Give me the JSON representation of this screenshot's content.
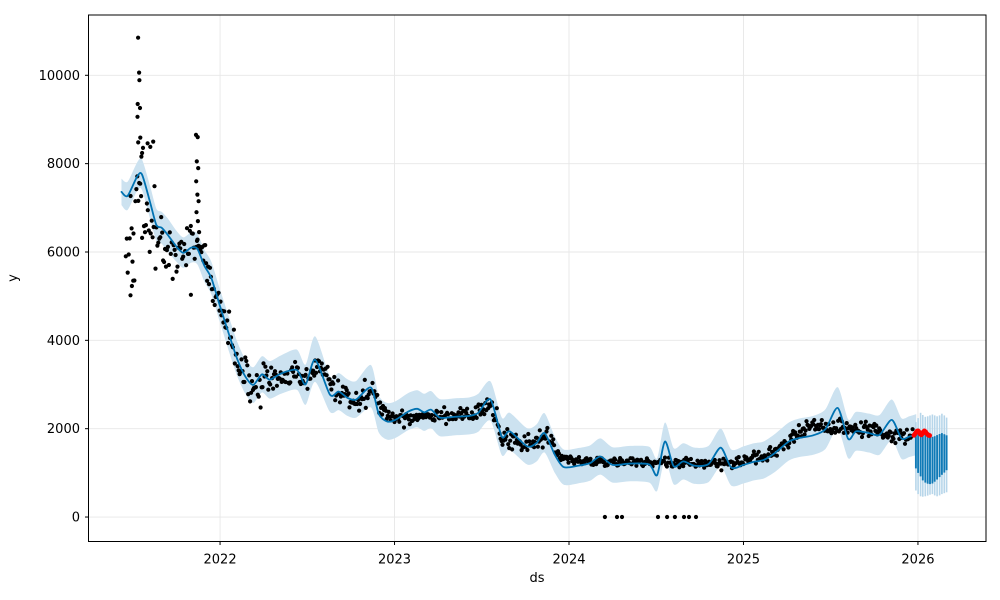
{
  "chart_data": {
    "type": "scatter",
    "subtype": "prophet-forecast",
    "title": "",
    "xlabel": "ds",
    "ylabel": "y",
    "grid": true,
    "legend": "none",
    "colors": {
      "forecast_line": "#0072B2",
      "uncertainty_band": "#cce2f0",
      "stripe_light": "#b7d6ea",
      "actual_points": "#000000",
      "highlight_points": "#ff0000",
      "gridline": "#e7e7e7",
      "spine": "#000000"
    },
    "x_axis": {
      "label": "ds",
      "min": 2021.246,
      "max": 2026.39,
      "ticks": [
        2022,
        2023,
        2024,
        2025,
        2026
      ]
    },
    "y_axis": {
      "label": "y",
      "min": -554,
      "max": 11365,
      "ticks": [
        0,
        2000,
        4000,
        6000,
        8000,
        10000
      ]
    },
    "forecast": {
      "comment": "columns: t(decimal year), yhat, yhat_lower, yhat_upper",
      "rows": [
        [
          2021.435,
          7360,
          7060,
          7660
        ],
        [
          2021.47,
          7270,
          6950,
          7590
        ],
        [
          2021.525,
          7710,
          7390,
          8030
        ],
        [
          2021.553,
          7750,
          7400,
          8090
        ],
        [
          2021.6,
          7110,
          6740,
          7480
        ],
        [
          2021.635,
          6610,
          6250,
          6980
        ],
        [
          2021.665,
          6550,
          6190,
          6910
        ],
        [
          2021.7,
          6390,
          6010,
          6760
        ],
        [
          2021.75,
          6120,
          5780,
          6480
        ],
        [
          2021.79,
          5980,
          5640,
          6330
        ],
        [
          2021.835,
          6100,
          5760,
          6450
        ],
        [
          2021.87,
          6070,
          5720,
          6420
        ],
        [
          2021.91,
          5690,
          5330,
          6050
        ],
        [
          2021.95,
          5410,
          5040,
          5780
        ],
        [
          2022.0,
          4770,
          4400,
          5150
        ],
        [
          2022.055,
          4090,
          3700,
          4480
        ],
        [
          2022.1,
          3560,
          3170,
          3950
        ],
        [
          2022.145,
          3180,
          2790,
          3570
        ],
        [
          2022.19,
          2990,
          2580,
          3390
        ],
        [
          2022.24,
          3230,
          2820,
          3640
        ],
        [
          2022.285,
          3110,
          2680,
          3530
        ],
        [
          2022.35,
          3250,
          2790,
          3660
        ],
        [
          2022.44,
          3330,
          2880,
          3790
        ],
        [
          2022.49,
          3000,
          2540,
          3450
        ],
        [
          2022.545,
          3560,
          3060,
          4090
        ],
        [
          2022.63,
          2770,
          2380,
          3190
        ],
        [
          2022.68,
          2840,
          2420,
          3260
        ],
        [
          2022.73,
          2700,
          2290,
          3120
        ],
        [
          2022.78,
          2660,
          2250,
          3080
        ],
        [
          2022.865,
          2930,
          2480,
          3440
        ],
        [
          2022.91,
          2330,
          1910,
          2750
        ],
        [
          2022.96,
          2160,
          1750,
          2580
        ],
        [
          2023.01,
          2210,
          1800,
          2630
        ],
        [
          2023.08,
          2390,
          1970,
          2810
        ],
        [
          2023.13,
          2450,
          2030,
          2870
        ],
        [
          2023.17,
          2370,
          1950,
          2790
        ],
        [
          2023.21,
          2430,
          2010,
          2850
        ],
        [
          2023.26,
          2250,
          1830,
          2670
        ],
        [
          2023.35,
          2270,
          1850,
          2690
        ],
        [
          2023.43,
          2290,
          1870,
          2710
        ],
        [
          2023.48,
          2360,
          1930,
          2790
        ],
        [
          2023.55,
          2660,
          2180,
          3070
        ],
        [
          2023.615,
          1820,
          1400,
          2250
        ],
        [
          2023.66,
          1940,
          1520,
          2360
        ],
        [
          2023.76,
          1600,
          1190,
          2010
        ],
        [
          2023.815,
          1680,
          1260,
          2100
        ],
        [
          2023.86,
          1900,
          1460,
          2350
        ],
        [
          2023.92,
          1400,
          990,
          1810
        ],
        [
          2023.97,
          1130,
          730,
          1530
        ],
        [
          2024.05,
          1160,
          760,
          1560
        ],
        [
          2024.12,
          1220,
          820,
          1620
        ],
        [
          2024.18,
          1370,
          960,
          1780
        ],
        [
          2024.25,
          1180,
          780,
          1580
        ],
        [
          2024.35,
          1210,
          810,
          1610
        ],
        [
          2024.46,
          1190,
          780,
          1590
        ],
        [
          2024.505,
          950,
          590,
          1330
        ],
        [
          2024.55,
          1710,
          1290,
          2140
        ],
        [
          2024.6,
          1150,
          740,
          1560
        ],
        [
          2024.655,
          1260,
          850,
          1670
        ],
        [
          2024.72,
          1160,
          750,
          1570
        ],
        [
          2024.8,
          1200,
          790,
          1610
        ],
        [
          2024.87,
          1570,
          1140,
          2000
        ],
        [
          2024.93,
          1120,
          710,
          1530
        ],
        [
          2025.0,
          1180,
          760,
          1600
        ],
        [
          2025.06,
          1250,
          830,
          1670
        ],
        [
          2025.115,
          1290,
          870,
          1710
        ],
        [
          2025.18,
          1450,
          1020,
          1880
        ],
        [
          2025.26,
          1710,
          1280,
          2140
        ],
        [
          2025.32,
          1790,
          1360,
          2230
        ],
        [
          2025.4,
          1850,
          1410,
          2290
        ],
        [
          2025.47,
          1990,
          1540,
          2440
        ],
        [
          2025.54,
          2470,
          1990,
          2940
        ],
        [
          2025.6,
          1770,
          1330,
          2210
        ],
        [
          2025.645,
          1940,
          1500,
          2380
        ],
        [
          2025.72,
          1900,
          1460,
          2340
        ],
        [
          2025.78,
          1860,
          1410,
          2310
        ],
        [
          2025.85,
          2200,
          1740,
          2660
        ],
        [
          2025.905,
          1780,
          1320,
          2240
        ],
        [
          2025.95,
          1820,
          1360,
          2280
        ],
        [
          2025.99,
          1870,
          1400,
          2330
        ]
      ]
    },
    "forecast_tail_daily_oscillation": {
      "comment": "dense daily forecast after history end; columns: t, band_top, dark_top, dark_bottom, band_bottom",
      "stripes": [
        [
          2025.988,
          2150,
          1880,
          1100,
          600
        ],
        [
          2026.001,
          2240,
          1900,
          1000,
          520
        ],
        [
          2026.015,
          2360,
          1905,
          920,
          470
        ],
        [
          2026.028,
          2310,
          1895,
          830,
          460
        ],
        [
          2026.042,
          2270,
          1880,
          780,
          470
        ],
        [
          2026.056,
          2280,
          1860,
          755,
          485
        ],
        [
          2026.069,
          2300,
          1835,
          745,
          505
        ],
        [
          2026.083,
          2320,
          1815,
          760,
          520
        ],
        [
          2026.096,
          2300,
          1830,
          800,
          490
        ],
        [
          2026.11,
          2280,
          1855,
          850,
          470
        ],
        [
          2026.124,
          2300,
          1880,
          905,
          490
        ],
        [
          2026.137,
          2340,
          1900,
          955,
          520
        ],
        [
          2026.151,
          2300,
          1875,
          1005,
          540
        ],
        [
          2026.164,
          2250,
          1850,
          1060,
          560
        ]
      ]
    },
    "actuals": {
      "comment": "daily black dots; rendered every 2 days around center path with segment noise sigma (seeded)",
      "t_start": 2021.46,
      "t_end": 2025.975,
      "step_days": 2,
      "marker_radius": 2.1,
      "seed": 42,
      "center": [
        [
          2021.46,
          6400
        ],
        [
          2021.52,
          6900
        ],
        [
          2021.56,
          7100
        ],
        [
          2021.6,
          6600
        ],
        [
          2021.65,
          6200
        ],
        [
          2021.72,
          6050
        ],
        [
          2021.78,
          5950
        ],
        [
          2021.83,
          6050
        ],
        [
          2021.88,
          6400
        ],
        [
          2021.93,
          5500
        ],
        [
          2022.0,
          4750
        ],
        [
          2022.06,
          4050
        ],
        [
          2022.12,
          3400
        ],
        [
          2022.18,
          2900
        ],
        [
          2022.22,
          2800
        ],
        [
          2022.26,
          3250
        ],
        [
          2022.33,
          3050
        ],
        [
          2022.4,
          3150
        ],
        [
          2022.45,
          3280
        ],
        [
          2022.5,
          3080
        ],
        [
          2022.56,
          3400
        ],
        [
          2022.61,
          3250
        ],
        [
          2022.66,
          2870
        ],
        [
          2022.73,
          2760
        ],
        [
          2022.8,
          2700
        ],
        [
          2022.87,
          2850
        ],
        [
          2022.93,
          2400
        ],
        [
          2023.0,
          2240
        ],
        [
          2023.1,
          2250
        ],
        [
          2023.16,
          2320
        ],
        [
          2023.24,
          2330
        ],
        [
          2023.34,
          2300
        ],
        [
          2023.44,
          2330
        ],
        [
          2023.53,
          2470
        ],
        [
          2023.575,
          2400
        ],
        [
          2023.61,
          1720
        ],
        [
          2023.68,
          1700
        ],
        [
          2023.75,
          1650
        ],
        [
          2023.82,
          1780
        ],
        [
          2023.875,
          1800
        ],
        [
          2023.93,
          1480
        ],
        [
          2023.99,
          1290
        ],
        [
          2024.1,
          1260
        ],
        [
          2024.2,
          1250
        ],
        [
          2024.3,
          1230
        ],
        [
          2024.42,
          1250
        ],
        [
          2024.55,
          1220
        ],
        [
          2024.65,
          1230
        ],
        [
          2024.76,
          1230
        ],
        [
          2024.88,
          1210
        ],
        [
          2024.97,
          1230
        ],
        [
          2025.05,
          1280
        ],
        [
          2025.12,
          1380
        ],
        [
          2025.19,
          1500
        ],
        [
          2025.25,
          1650
        ],
        [
          2025.31,
          1900
        ],
        [
          2025.38,
          2060
        ],
        [
          2025.46,
          2020
        ],
        [
          2025.53,
          2000
        ],
        [
          2025.6,
          1950
        ],
        [
          2025.67,
          2010
        ],
        [
          2025.74,
          1960
        ],
        [
          2025.8,
          1870
        ],
        [
          2025.86,
          1810
        ],
        [
          2025.92,
          1850
        ],
        [
          2025.975,
          1860
        ]
      ],
      "sigma_segments": [
        [
          2021.46,
          2021.63,
          520
        ],
        [
          2021.63,
          2021.86,
          300
        ],
        [
          2021.86,
          2021.94,
          260
        ],
        [
          2021.94,
          2022.32,
          210
        ],
        [
          2022.32,
          2022.95,
          130
        ],
        [
          2022.95,
          2023.52,
          85
        ],
        [
          2023.52,
          2023.96,
          100
        ],
        [
          2023.96,
          2025.05,
          55
        ],
        [
          2025.05,
          2025.975,
          90
        ]
      ],
      "outliers": [
        [
          2021.53,
          10850
        ],
        [
          2021.536,
          10060
        ],
        [
          2021.538,
          9890
        ],
        [
          2021.528,
          9350
        ],
        [
          2021.541,
          9260
        ],
        [
          2021.527,
          9060
        ],
        [
          2021.543,
          8590
        ],
        [
          2021.531,
          8480
        ],
        [
          2021.549,
          8160
        ],
        [
          2021.553,
          8240
        ],
        [
          2021.585,
          8460
        ],
        [
          2021.6,
          8380
        ],
        [
          2021.617,
          8500
        ],
        [
          2021.487,
          5020
        ],
        [
          2021.495,
          5230
        ],
        [
          2021.502,
          5350
        ],
        [
          2021.833,
          5030
        ],
        [
          2021.862,
          8650
        ],
        [
          2021.872,
          8600
        ],
        [
          2021.867,
          8050
        ],
        [
          2021.875,
          7900
        ],
        [
          2021.863,
          7600
        ],
        [
          2021.87,
          7300
        ],
        [
          2021.877,
          7150
        ],
        [
          2021.865,
          6900
        ],
        [
          2021.873,
          6700
        ],
        [
          2021.88,
          6450
        ],
        [
          2021.868,
          6250
        ]
      ],
      "zero_value_points": [
        [
          2024.206,
          0
        ],
        [
          2024.275,
          0
        ],
        [
          2024.304,
          0
        ],
        [
          2024.51,
          0
        ],
        [
          2024.562,
          0
        ],
        [
          2024.607,
          0
        ],
        [
          2024.659,
          0
        ],
        [
          2024.688,
          0
        ],
        [
          2024.728,
          0
        ]
      ]
    },
    "highlight_points_red": [
      [
        2025.977,
        1850
      ],
      [
        2025.983,
        1880
      ],
      [
        2025.989,
        1915
      ],
      [
        2025.995,
        1945
      ],
      [
        2026.001,
        1950
      ],
      [
        2026.007,
        1920
      ],
      [
        2026.013,
        1880
      ],
      [
        2026.019,
        1860
      ],
      [
        2026.025,
        1885
      ],
      [
        2026.031,
        1925
      ],
      [
        2026.037,
        1950
      ],
      [
        2026.043,
        1930
      ],
      [
        2026.049,
        1895
      ],
      [
        2026.055,
        1870
      ],
      [
        2026.061,
        1850
      ],
      [
        2026.067,
        1845
      ]
    ]
  }
}
